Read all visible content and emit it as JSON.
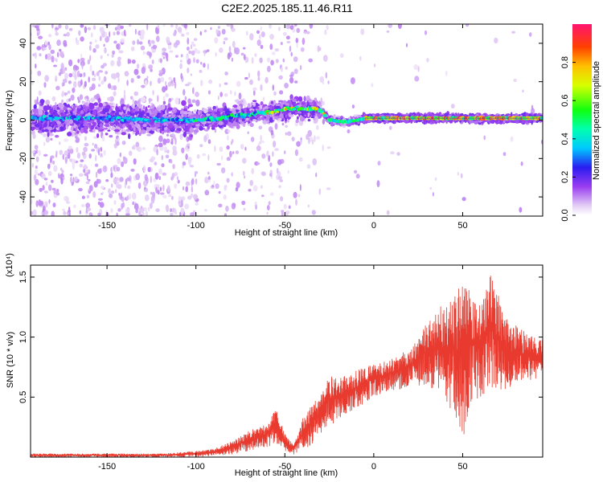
{
  "title": "C2E2.2025.185.11.46.R11",
  "chart_data": [
    {
      "type": "heatmap",
      "xlabel": "Height of straight line (km)",
      "ylabel": "Frequency (Hz)",
      "xlim": [
        -193,
        95
      ],
      "ylim": [
        -50,
        50
      ],
      "x_ticks": [
        "-150",
        "-100",
        "-50",
        "0",
        "50"
      ],
      "y_ticks": [
        "-40",
        "-20",
        "0",
        "20",
        "40"
      ],
      "ridge": [
        {
          "x": -193,
          "y": 1
        },
        {
          "x": -150,
          "y": 1
        },
        {
          "x": -120,
          "y": 0
        },
        {
          "x": -100,
          "y": 0
        },
        {
          "x": -80,
          "y": 2
        },
        {
          "x": -60,
          "y": 4
        },
        {
          "x": -45,
          "y": 6
        },
        {
          "x": -35,
          "y": 6
        },
        {
          "x": -30,
          "y": 5
        },
        {
          "x": -25,
          "y": 0
        },
        {
          "x": -15,
          "y": -1
        },
        {
          "x": -5,
          "y": 1
        },
        {
          "x": 95,
          "y": 1
        }
      ],
      "colorbar": {
        "label": "Normalized spectral amplitude",
        "range": [
          0,
          1
        ],
        "ticks": [
          "0.0",
          "0.2",
          "0.4",
          "0.6",
          "0.8"
        ]
      }
    },
    {
      "type": "line",
      "xlabel": "Height of straight line (km)",
      "ylabel": "SNR (10 * v/v)",
      "y_multiplier": "(x10⁴)",
      "xlim": [
        -193,
        95
      ],
      "ylim": [
        0,
        1.6
      ],
      "x_ticks": [
        "-150",
        "-100",
        "-50",
        "0",
        "50"
      ],
      "y_ticks": [
        "0.5",
        "1.0",
        "1.5"
      ],
      "color": "#e83a2e",
      "envelope": [
        {
          "x": -193,
          "lo": 0.0,
          "hi": 0.03
        },
        {
          "x": -120,
          "lo": 0.0,
          "hi": 0.03
        },
        {
          "x": -100,
          "lo": 0.0,
          "hi": 0.05
        },
        {
          "x": -90,
          "lo": 0.01,
          "hi": 0.07
        },
        {
          "x": -80,
          "lo": 0.02,
          "hi": 0.13
        },
        {
          "x": -70,
          "lo": 0.05,
          "hi": 0.22
        },
        {
          "x": -60,
          "lo": 0.08,
          "hi": 0.28
        },
        {
          "x": -55,
          "lo": 0.12,
          "hi": 0.4
        },
        {
          "x": -50,
          "lo": 0.05,
          "hi": 0.2
        },
        {
          "x": -45,
          "lo": 0.02,
          "hi": 0.1
        },
        {
          "x": -40,
          "lo": 0.06,
          "hi": 0.32
        },
        {
          "x": -35,
          "lo": 0.1,
          "hi": 0.45
        },
        {
          "x": -30,
          "lo": 0.2,
          "hi": 0.5
        },
        {
          "x": -25,
          "lo": 0.25,
          "hi": 0.68
        },
        {
          "x": -20,
          "lo": 0.32,
          "hi": 0.65
        },
        {
          "x": -10,
          "lo": 0.4,
          "hi": 0.72
        },
        {
          "x": 0,
          "lo": 0.5,
          "hi": 0.78
        },
        {
          "x": 10,
          "lo": 0.55,
          "hi": 0.83
        },
        {
          "x": 20,
          "lo": 0.58,
          "hi": 0.9
        },
        {
          "x": 30,
          "lo": 0.6,
          "hi": 1.12
        },
        {
          "x": 40,
          "lo": 0.45,
          "hi": 1.3
        },
        {
          "x": 45,
          "lo": 0.35,
          "hi": 1.35
        },
        {
          "x": 50,
          "lo": 0.15,
          "hi": 1.45
        },
        {
          "x": 55,
          "lo": 0.4,
          "hi": 1.4
        },
        {
          "x": 60,
          "lo": 0.5,
          "hi": 1.25
        },
        {
          "x": 65,
          "lo": 0.55,
          "hi": 1.55
        },
        {
          "x": 70,
          "lo": 0.55,
          "hi": 1.35
        },
        {
          "x": 75,
          "lo": 0.55,
          "hi": 1.15
        },
        {
          "x": 80,
          "lo": 0.6,
          "hi": 1.1
        },
        {
          "x": 85,
          "lo": 0.62,
          "hi": 1.05
        },
        {
          "x": 90,
          "lo": 0.65,
          "hi": 1.0
        },
        {
          "x": 95,
          "lo": 0.65,
          "hi": 0.98
        }
      ]
    }
  ]
}
